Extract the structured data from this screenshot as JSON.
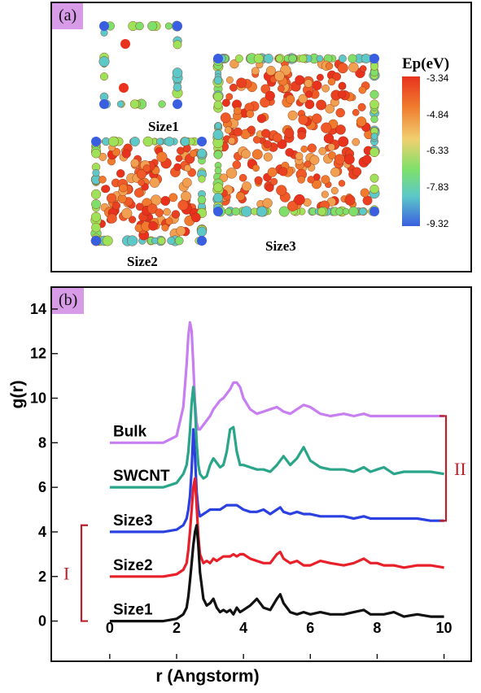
{
  "panel_a": {
    "label": "(a)",
    "structures": [
      "Size1",
      "Size2",
      "Size3"
    ],
    "colorbar": {
      "title": "Ep(eV)",
      "ticks": [
        "-3.34",
        "-4.84",
        "-6.33",
        "-7.83",
        "-9.32"
      ],
      "colors": [
        "#e8321e",
        "#f07a2e",
        "#f0d070",
        "#7ee06a",
        "#5cc8c8",
        "#3a5ee0"
      ]
    }
  },
  "panel_b": {
    "label": "(b)"
  },
  "chart_data": {
    "type": "line",
    "xlabel": "r (Angstorm)",
    "ylabel": "g(r)",
    "xlim": [
      -0.8,
      10.4
    ],
    "ylim": [
      -0.6,
      14.8
    ],
    "xticks": [
      0,
      2,
      4,
      6,
      8,
      10
    ],
    "yticks": [
      0,
      2,
      4,
      6,
      8,
      10,
      12,
      14
    ],
    "x": [
      0,
      1.6,
      2.0,
      2.2,
      2.3,
      2.35,
      2.4,
      2.45,
      2.5,
      2.55,
      2.6,
      2.65,
      2.7,
      2.8,
      2.9,
      3.0,
      3.1,
      3.2,
      3.3,
      3.4,
      3.5,
      3.6,
      3.7,
      3.8,
      3.9,
      4.0,
      4.2,
      4.4,
      4.6,
      4.8,
      5.0,
      5.1,
      5.2,
      5.4,
      5.6,
      5.8,
      6.0,
      6.3,
      6.6,
      7.0,
      7.3,
      7.6,
      7.8,
      8.0,
      8.2,
      8.5,
      8.8,
      9.2,
      9.6,
      10.0
    ],
    "series": [
      {
        "name": "Bulk",
        "color": "#c77ef0",
        "values": [
          8.0,
          8.0,
          8.3,
          9.6,
          11.5,
          12.8,
          13.4,
          13.0,
          11.5,
          9.8,
          8.9,
          8.6,
          8.6,
          8.8,
          9.0,
          9.2,
          9.5,
          9.7,
          9.9,
          10.0,
          10.2,
          10.4,
          10.7,
          10.7,
          10.5,
          10.0,
          9.5,
          9.3,
          9.4,
          9.5,
          9.6,
          9.5,
          9.4,
          9.3,
          9.5,
          9.7,
          9.6,
          9.3,
          9.2,
          9.3,
          9.2,
          9.3,
          9.2,
          9.2,
          9.2,
          9.2,
          9.2,
          9.2,
          9.2,
          9.2
        ]
      },
      {
        "name": "SWCNT",
        "color": "#2aa58a",
        "values": [
          6.0,
          6.0,
          6.2,
          6.6,
          7.0,
          7.6,
          8.5,
          9.8,
          10.5,
          9.6,
          8.0,
          7.0,
          6.6,
          6.4,
          6.5,
          7.0,
          7.3,
          7.1,
          6.9,
          7.0,
          7.6,
          8.6,
          8.7,
          7.6,
          7.0,
          7.0,
          6.9,
          6.8,
          6.8,
          6.7,
          7.0,
          7.2,
          7.4,
          7.0,
          7.3,
          7.8,
          7.2,
          6.9,
          6.8,
          6.8,
          6.7,
          6.9,
          6.7,
          6.8,
          6.9,
          6.6,
          6.7,
          6.7,
          6.7,
          6.6
        ]
      },
      {
        "name": "Size3",
        "color": "#2b40e0",
        "values": [
          4.0,
          4.0,
          4.1,
          4.3,
          4.6,
          5.0,
          5.6,
          6.8,
          8.6,
          7.4,
          5.8,
          5.0,
          4.7,
          4.8,
          4.9,
          5.0,
          5.0,
          5.0,
          5.0,
          5.1,
          5.2,
          5.2,
          5.2,
          5.2,
          5.1,
          5.0,
          4.9,
          4.9,
          5.0,
          4.8,
          5.0,
          5.1,
          4.9,
          4.8,
          4.9,
          4.8,
          4.8,
          4.7,
          4.7,
          4.7,
          4.6,
          4.7,
          4.6,
          4.6,
          4.6,
          4.6,
          4.6,
          4.6,
          4.5,
          4.5
        ]
      },
      {
        "name": "Size2",
        "color": "#e8202a",
        "values": [
          2.0,
          2.0,
          2.1,
          2.3,
          2.6,
          3.2,
          4.0,
          5.0,
          6.0,
          6.4,
          5.2,
          3.8,
          3.0,
          2.6,
          2.7,
          2.6,
          2.8,
          2.7,
          2.8,
          2.9,
          2.9,
          2.9,
          3.0,
          2.9,
          3.0,
          3.0,
          2.8,
          2.7,
          2.6,
          2.6,
          3.0,
          3.1,
          2.8,
          2.6,
          2.7,
          2.5,
          2.5,
          2.7,
          2.6,
          2.5,
          2.6,
          2.8,
          2.6,
          2.6,
          2.5,
          2.5,
          2.4,
          2.5,
          2.5,
          2.4
        ]
      },
      {
        "name": "Size1",
        "color": "#111111",
        "values": [
          0.0,
          0.0,
          0.1,
          0.3,
          0.6,
          1.1,
          1.8,
          2.6,
          3.4,
          4.0,
          4.3,
          3.4,
          2.2,
          1.0,
          0.7,
          0.8,
          1.0,
          0.6,
          0.4,
          0.5,
          0.4,
          0.5,
          0.3,
          0.6,
          0.4,
          0.5,
          0.7,
          1.0,
          0.6,
          0.5,
          1.0,
          1.2,
          0.8,
          0.4,
          0.3,
          0.4,
          0.3,
          0.4,
          0.3,
          0.3,
          0.4,
          0.5,
          0.3,
          0.3,
          0.3,
          0.4,
          0.2,
          0.3,
          0.2,
          0.2
        ]
      }
    ],
    "groups": [
      {
        "label": "I",
        "members": [
          "Size1",
          "Size2",
          "Size3"
        ]
      },
      {
        "label": "II",
        "members": [
          "Size3",
          "SWCNT",
          "Bulk"
        ]
      }
    ]
  }
}
